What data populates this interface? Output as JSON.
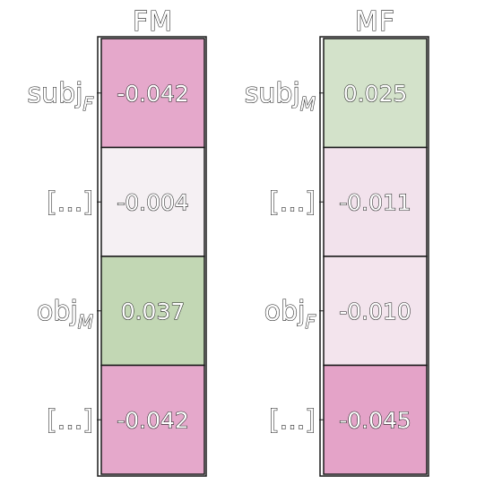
{
  "chart_data": {
    "type": "heatmap",
    "colormap": {
      "negative": "#c51b7d",
      "neutral": "#f7f7f7",
      "positive": "#4d9221"
    },
    "value_range": [
      -0.1,
      0.1
    ],
    "panels": [
      {
        "title": "FM",
        "rows": [
          {
            "label": "subj",
            "sub": "F",
            "value": "-0.042"
          },
          {
            "label": "[...]",
            "sub": "",
            "value": "-0.004"
          },
          {
            "label": "obj",
            "sub": "M",
            "value": "0.037"
          },
          {
            "label": "[...]",
            "sub": "",
            "value": "-0.042"
          }
        ]
      },
      {
        "title": "MF",
        "rows": [
          {
            "label": "subj",
            "sub": "M",
            "value": "0.025"
          },
          {
            "label": "[...]",
            "sub": "",
            "value": "-0.011"
          },
          {
            "label": "obj",
            "sub": "F",
            "value": "-0.010"
          },
          {
            "label": "[...]",
            "sub": "",
            "value": "-0.045"
          }
        ]
      }
    ]
  }
}
